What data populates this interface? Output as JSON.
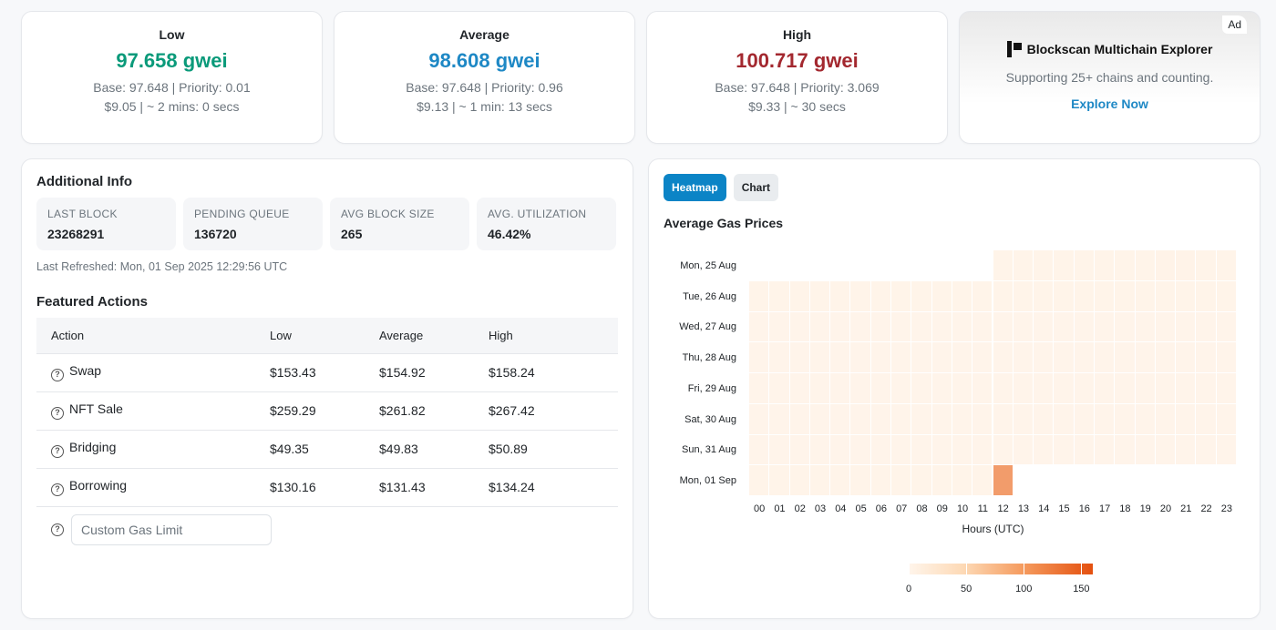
{
  "gas": {
    "low": {
      "title": "Low",
      "value": "97.658 gwei",
      "base_priority": "Base: 97.648 | Priority: 0.01",
      "cost_time": "$9.05 | ~ 2 mins: 0 secs"
    },
    "average": {
      "title": "Average",
      "value": "98.608 gwei",
      "base_priority": "Base: 97.648 | Priority: 0.96",
      "cost_time": "$9.13 | ~ 1 min: 13 secs"
    },
    "high": {
      "title": "High",
      "value": "100.717 gwei",
      "base_priority": "Base: 97.648 | Priority: 3.069",
      "cost_time": "$9.33 | ~ 30 secs"
    }
  },
  "ad": {
    "badge": "Ad",
    "brand": "Blockscan Multichain Explorer",
    "text": "Supporting 25+ chains and counting.",
    "link": "Explore Now"
  },
  "info": {
    "title": "Additional Info",
    "stats": [
      {
        "label": "LAST BLOCK",
        "value": "23268291"
      },
      {
        "label": "PENDING QUEUE",
        "value": "136720"
      },
      {
        "label": "AVG BLOCK SIZE",
        "value": "265"
      },
      {
        "label": "AVG. UTILIZATION",
        "value": "46.42%"
      }
    ],
    "refreshed": "Last Refreshed: Mon, 01 Sep 2025 12:29:56 UTC"
  },
  "featured": {
    "title": "Featured Actions",
    "headers": [
      "Action",
      "Low",
      "Average",
      "High"
    ],
    "rows": [
      {
        "action": "Swap",
        "low": "$153.43",
        "average": "$154.92",
        "high": "$158.24"
      },
      {
        "action": "NFT Sale",
        "low": "$259.29",
        "average": "$261.82",
        "high": "$267.42"
      },
      {
        "action": "Bridging",
        "low": "$49.35",
        "average": "$49.83",
        "high": "$50.89"
      },
      {
        "action": "Borrowing",
        "low": "$130.16",
        "average": "$131.43",
        "high": "$134.24"
      }
    ],
    "custom_placeholder": "Custom Gas Limit"
  },
  "heatmap": {
    "tabs": [
      "Heatmap",
      "Chart"
    ],
    "active_tab": "Heatmap",
    "title": "Average Gas Prices",
    "xlabel": "Hours (UTC)",
    "days": [
      "Mon, 25 Aug",
      "Tue, 26 Aug",
      "Wed, 27 Aug",
      "Thu, 28 Aug",
      "Fri, 29 Aug",
      "Sat, 30 Aug",
      "Sun, 31 Aug",
      "Mon, 01 Sep"
    ],
    "hours": [
      "00",
      "01",
      "02",
      "03",
      "04",
      "05",
      "06",
      "07",
      "08",
      "09",
      "10",
      "11",
      "12",
      "13",
      "14",
      "15",
      "16",
      "17",
      "18",
      "19",
      "20",
      "21",
      "22",
      "23"
    ],
    "scale": {
      "min": 0,
      "max": 160,
      "ticks": [
        "0",
        "50",
        "100",
        "150"
      ]
    },
    "values": [
      [
        null,
        null,
        null,
        null,
        null,
        null,
        null,
        null,
        null,
        null,
        null,
        null,
        2,
        2,
        2,
        2,
        2,
        2,
        2,
        2,
        3,
        3,
        2,
        2
      ],
      [
        2,
        2,
        2,
        2,
        2,
        2,
        2,
        2,
        2,
        2,
        2,
        2,
        2,
        2,
        2,
        2,
        2,
        2,
        2,
        2,
        2,
        2,
        2,
        2
      ],
      [
        1,
        1,
        1,
        1,
        1,
        1,
        1,
        1,
        1,
        1,
        1,
        1,
        1,
        1,
        1,
        1,
        1,
        1,
        1,
        1,
        1,
        1,
        1,
        1
      ],
      [
        1,
        1,
        1,
        1,
        1,
        1,
        1,
        1,
        1,
        1,
        1,
        1,
        1,
        1,
        1,
        1,
        1,
        1,
        1,
        1,
        1,
        1,
        1,
        1
      ],
      [
        1,
        1,
        1,
        1,
        1,
        1,
        1,
        1,
        1,
        1,
        1,
        1,
        1,
        1,
        1,
        1,
        1,
        1,
        1,
        1,
        1,
        1,
        1,
        1
      ],
      [
        1,
        1,
        1,
        1,
        1,
        1,
        1,
        1,
        1,
        1,
        1,
        1,
        1,
        1,
        1,
        1,
        1,
        1,
        1,
        1,
        1,
        1,
        1,
        1
      ],
      [
        1,
        1,
        1,
        1,
        1,
        1,
        1,
        1,
        1,
        1,
        1,
        1,
        1,
        1,
        1,
        1,
        1,
        1,
        1,
        1,
        1,
        1,
        1,
        1
      ],
      [
        2,
        2,
        2,
        2,
        2,
        2,
        2,
        2,
        2,
        2,
        2,
        2,
        98,
        null,
        null,
        null,
        null,
        null,
        null,
        null,
        null,
        null,
        null,
        null
      ]
    ]
  },
  "chart_data": {
    "type": "heatmap",
    "title": "Average Gas Prices",
    "xlabel": "Hours (UTC)",
    "ylabel": "",
    "x": [
      "00",
      "01",
      "02",
      "03",
      "04",
      "05",
      "06",
      "07",
      "08",
      "09",
      "10",
      "11",
      "12",
      "13",
      "14",
      "15",
      "16",
      "17",
      "18",
      "19",
      "20",
      "21",
      "22",
      "23"
    ],
    "y": [
      "Mon, 25 Aug",
      "Tue, 26 Aug",
      "Wed, 27 Aug",
      "Thu, 28 Aug",
      "Fri, 29 Aug",
      "Sat, 30 Aug",
      "Sun, 31 Aug",
      "Mon, 01 Sep"
    ],
    "colorbar": {
      "min": 0,
      "max": 160,
      "ticks": [
        0,
        50,
        100,
        150
      ]
    }
  },
  "colors": {
    "low": "#0a9a7a",
    "average": "#1e88c5",
    "high": "#a3282f",
    "accent": "#0b84c6"
  }
}
